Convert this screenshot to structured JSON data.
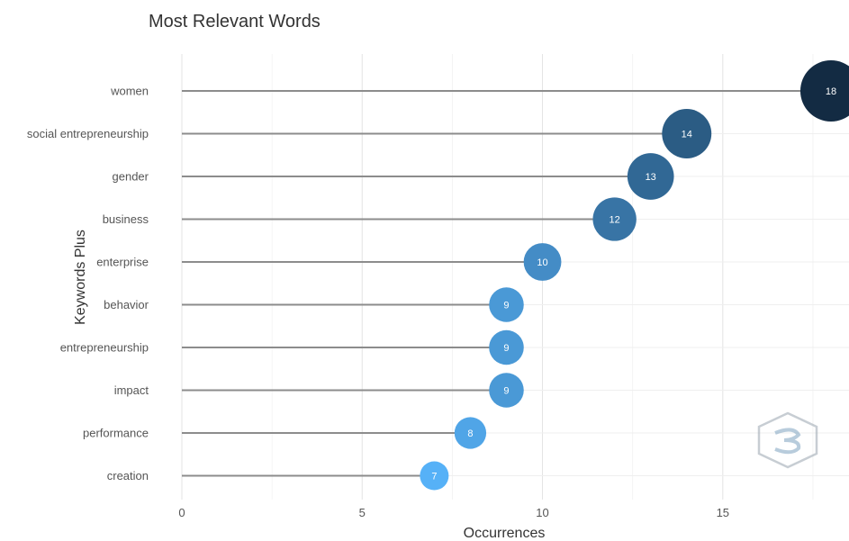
{
  "chart_data": {
    "type": "lollipop",
    "title": "Most Relevant Words",
    "xlabel": "Occurrences",
    "ylabel": "Keywords Plus",
    "xlim": [
      0,
      18.5
    ],
    "xticks": [
      0,
      5,
      10,
      15
    ],
    "grid": true,
    "categories": [
      "women",
      "social entrepreneurship",
      "gender",
      "business",
      "enterprise",
      "behavior",
      "entrepreneurship",
      "impact",
      "performance",
      "creation"
    ],
    "values": [
      18,
      14,
      13,
      12,
      10,
      9,
      9,
      9,
      8,
      7
    ],
    "color_scale": {
      "low": "#56B1F7",
      "high": "#132B43"
    }
  },
  "watermark": {
    "icon": "hexagon-logo-icon"
  }
}
